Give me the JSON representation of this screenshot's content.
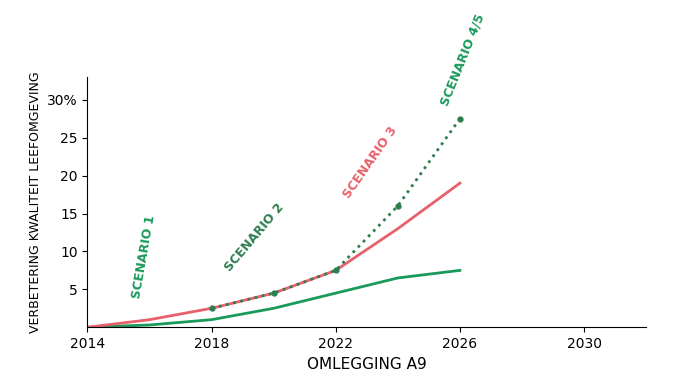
{
  "chart_data": {
    "type": "line",
    "x_label": "OMLEGGING A9",
    "y_label": "VERBETERING KWALITEIT LEEFOMGEVING",
    "xlim": [
      2014,
      2032
    ],
    "xticks": [
      2014,
      2018,
      2022,
      2026,
      2030
    ],
    "ylim": [
      0,
      33
    ],
    "yticks": [
      5,
      10,
      15,
      20,
      25,
      {
        "value": 30,
        "label": "30%"
      }
    ],
    "grid": false,
    "series": [
      {
        "name": "SCENARIO 1",
        "color": "#1a9a5a",
        "line_style": "solid",
        "marker": "none",
        "x": [
          2014,
          2016,
          2018,
          2020,
          2022,
          2024,
          2026
        ],
        "values": [
          0,
          0.3,
          1,
          2.5,
          4.5,
          6.5,
          7.5
        ]
      },
      {
        "name": "SCENARIO 3",
        "color": "#e8606a",
        "line_style": "solid",
        "marker": "none",
        "x": [
          2014,
          2016,
          2018,
          2020,
          2022,
          2024,
          2026
        ],
        "values": [
          0,
          1,
          2.5,
          4.5,
          7.5,
          13,
          19
        ]
      },
      {
        "name": "SCENARIO 2",
        "color": "#2e7d4f",
        "line_style": "dotted",
        "marker": "o",
        "x": [
          2018,
          2020,
          2022,
          2024,
          2026
        ],
        "values": [
          2.5,
          4.5,
          7.5,
          16,
          27.5
        ]
      }
    ],
    "annotations": [
      {
        "text": "SCENARIO 4/5",
        "x": 2025.3,
        "y": 29,
        "color": "#1a9a5a"
      }
    ]
  }
}
